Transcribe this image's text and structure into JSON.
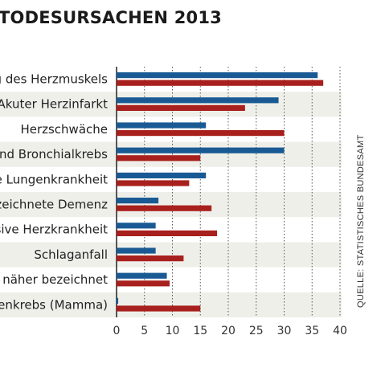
{
  "title": "TODESURSACHEN 2013",
  "source": "QUELLE: STATISTISCHES BUNDESAMT",
  "colors": {
    "series_a": "#1a5a94",
    "series_b": "#a8201d",
    "stripe": "#efefea",
    "grid": "#555555"
  },
  "chart_data": {
    "type": "bar",
    "orientation": "horizontal",
    "categories": [
      "g des  Herzmuskels",
      "Akuter Herzinfarkt",
      "Herzschwäche",
      "und Bronchialkrebs",
      "re Lungenkrankheit",
      "ezeichnete Demenz",
      "nsive Herzkrankheit",
      "Schlaganfall",
      "t näher bezeichnet",
      "enkrebs (Mamma)"
    ],
    "series": [
      {
        "values": [
          36,
          29,
          16,
          30,
          16,
          7.5,
          7,
          7,
          9,
          0.3
        ]
      },
      {
        "values": [
          37,
          23,
          30,
          15,
          13,
          17,
          18,
          12,
          9.5,
          15
        ]
      }
    ],
    "xlim": [
      0,
      40
    ],
    "xticks": [
      0,
      5,
      10,
      15,
      20,
      25,
      30,
      35,
      40
    ],
    "grid": "dotted vertical"
  }
}
